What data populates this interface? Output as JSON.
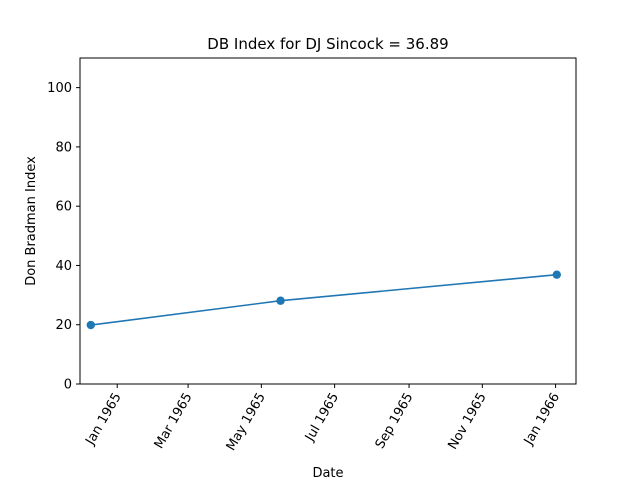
{
  "chart_data": {
    "type": "line",
    "title": "DB Index for DJ Sincock = 36.89",
    "xlabel": "Date",
    "ylabel": "Don Bradman Index",
    "ylim": [
      0,
      110
    ],
    "xlim": [
      "1964-12-01",
      "1966-01-18"
    ],
    "x_ticks": [
      {
        "date": "1965-01-01",
        "label": "Jan 1965"
      },
      {
        "date": "1965-03-01",
        "label": "Mar 1965"
      },
      {
        "date": "1965-05-01",
        "label": "May 1965"
      },
      {
        "date": "1965-07-01",
        "label": "Jul 1965"
      },
      {
        "date": "1965-09-01",
        "label": "Sep 1965"
      },
      {
        "date": "1965-11-01",
        "label": "Nov 1965"
      },
      {
        "date": "1966-01-01",
        "label": "Jan 1966"
      }
    ],
    "y_ticks": [
      0,
      20,
      40,
      60,
      80,
      100
    ],
    "grid": false,
    "series": [
      {
        "x": [
          "1964-12-10",
          "1965-05-17",
          "1966-01-02"
        ],
        "values": [
          19.9,
          28.1,
          36.89
        ],
        "color": "#1f77b4",
        "marker": "circle"
      }
    ]
  }
}
